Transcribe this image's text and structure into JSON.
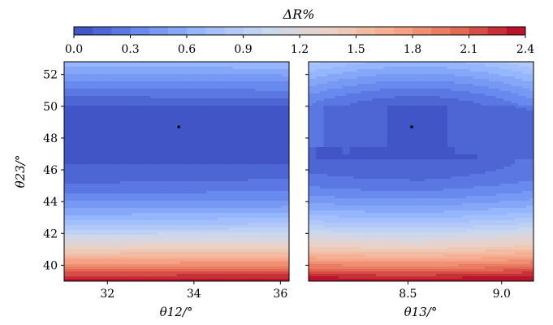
{
  "colorbar": {
    "label": "ΔR%",
    "ticks": [
      "0.0",
      "0.3",
      "0.6",
      "0.9",
      "1.2",
      "1.5",
      "1.8",
      "2.1",
      "2.4"
    ],
    "range": [
      0.0,
      2.4
    ],
    "levels": 24,
    "cmap": [
      "#3b4cc0",
      "#6788ee",
      "#9abbff",
      "#c9d7f0",
      "#edd1c2",
      "#f7a889",
      "#e26952",
      "#b40426"
    ]
  },
  "chart_data": [
    {
      "type": "heatmap",
      "xlabel": "θ12/°",
      "ylabel": "θ23/°",
      "xlim": [
        31.0,
        36.2
      ],
      "ylim": [
        39.0,
        52.8
      ],
      "xticks": [
        32,
        34,
        36
      ],
      "yticks": [
        40,
        42,
        44,
        46,
        48,
        50,
        52
      ],
      "z_range": [
        0.0,
        2.4
      ],
      "best_fit": {
        "x": 33.65,
        "y": 48.7
      }
    },
    {
      "type": "heatmap",
      "xlabel": "θ13/°",
      "ylabel": "",
      "xlim": [
        7.97,
        9.17
      ],
      "ylim": [
        39.0,
        52.8
      ],
      "xticks": [
        "8.5",
        "9.0"
      ],
      "yticks": [
        40,
        42,
        44,
        46,
        48,
        50,
        52
      ],
      "z_range": [
        0.0,
        2.4
      ],
      "best_fit": {
        "x": 8.52,
        "y": 48.7
      }
    }
  ]
}
